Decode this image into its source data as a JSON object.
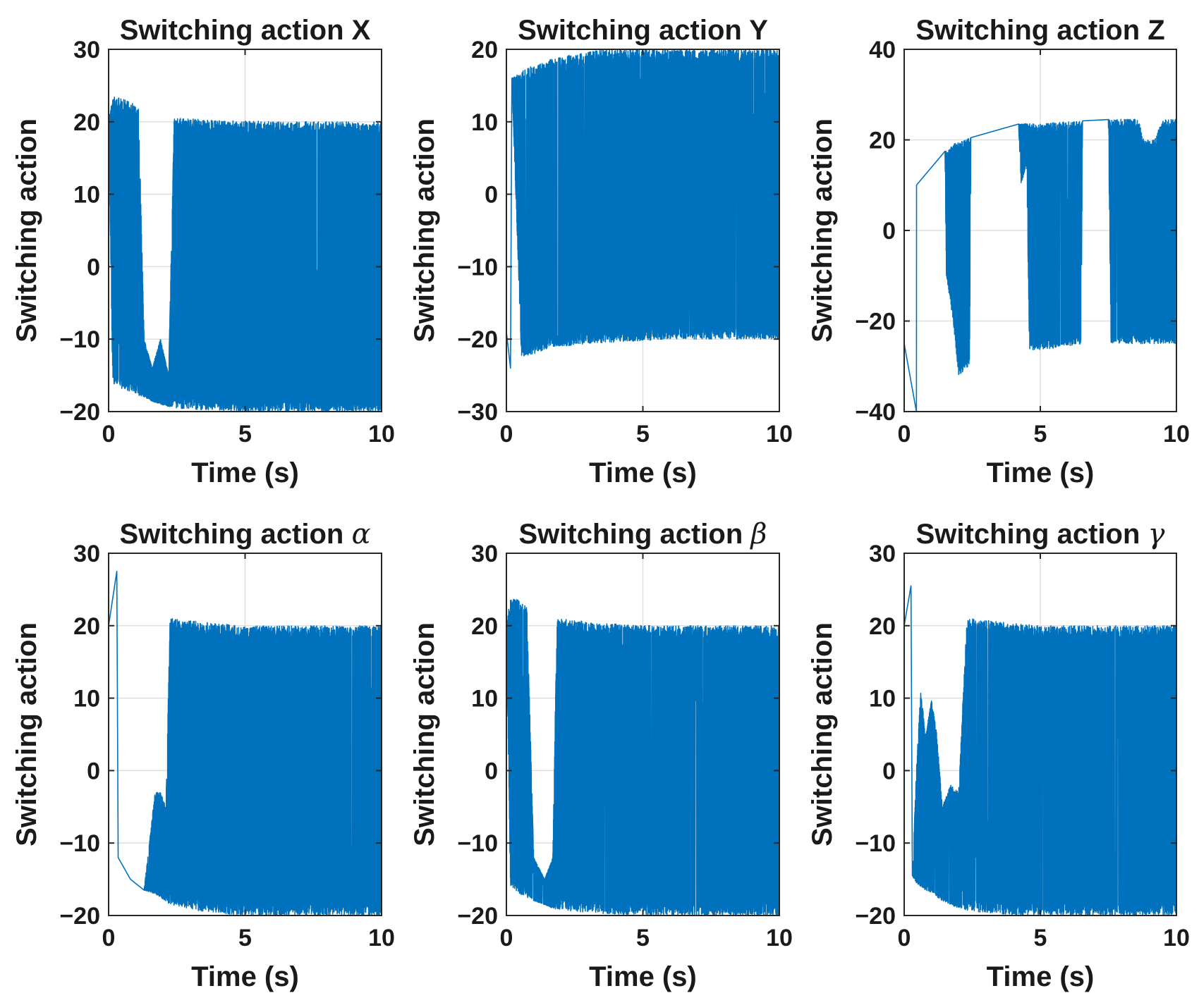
{
  "colors": {
    "series": "#0072BD",
    "axis": "#262626",
    "grid": "#dfdfdf",
    "background": "#ffffff"
  },
  "chart_data": [
    {
      "type": "line",
      "title": "Switching action X",
      "xlabel": "Time (s)",
      "ylabel": "Switching action",
      "xlim": [
        0,
        10
      ],
      "ylim": [
        -20,
        30
      ],
      "xticks": [
        0,
        5,
        10
      ],
      "yticks": [
        -20,
        -10,
        0,
        10,
        20,
        30
      ],
      "xtick_labels": [
        "0",
        "5",
        "10"
      ],
      "ytick_labels": [
        "−20",
        "−10",
        "0",
        "10",
        "20",
        "30"
      ],
      "grid": true,
      "series": [
        {
          "envelope": [
            [
              0,
              20,
              20
            ],
            [
              0.15,
              23.5,
              -16
            ],
            [
              0.3,
              23.5,
              -16.5
            ],
            [
              0.6,
              23,
              -17
            ],
            [
              0.9,
              22.5,
              -17.5
            ],
            [
              1.1,
              22,
              -17.8
            ],
            [
              1.3,
              -10,
              -18
            ],
            [
              1.6,
              -14,
              -18.6
            ],
            [
              1.9,
              -10,
              -19
            ],
            [
              2.2,
              -15,
              -19.3
            ],
            [
              2.4,
              20.5,
              -19.5
            ],
            [
              3.0,
              20.4,
              -19.7
            ],
            [
              3.6,
              20.3,
              -19.8
            ],
            [
              4.2,
              20.2,
              -19.9
            ],
            [
              4.8,
              20.1,
              -20
            ],
            [
              5.2,
              20.1,
              -20
            ],
            [
              5.6,
              20.1,
              -20
            ],
            [
              6.0,
              20,
              -20
            ],
            [
              6.5,
              20,
              -20
            ],
            [
              7.0,
              20,
              -20
            ],
            [
              7.5,
              20,
              -20
            ],
            [
              8.0,
              20,
              -20
            ],
            [
              8.5,
              20,
              -20
            ],
            [
              9.0,
              20,
              -20
            ],
            [
              9.5,
              20,
              -20
            ],
            [
              10,
              20,
              -20
            ]
          ]
        }
      ]
    },
    {
      "type": "line",
      "title": "Switching action Y",
      "xlabel": "Time (s)",
      "ylabel": "Switching action",
      "xlim": [
        0,
        10
      ],
      "ylim": [
        -30,
        20
      ],
      "xticks": [
        0,
        5,
        10
      ],
      "yticks": [
        -30,
        -20,
        -10,
        0,
        10,
        20
      ],
      "xtick_labels": [
        "0",
        "5",
        "10"
      ],
      "ytick_labels": [
        "−30",
        "−20",
        "−10",
        "0",
        "10",
        "20"
      ],
      "grid": true,
      "series": [
        {
          "envelope": [
            [
              0,
              -19,
              -19
            ],
            [
              0.15,
              -24,
              -24
            ],
            [
              0.2,
              16,
              16
            ],
            [
              0.55,
              17,
              -22.5
            ],
            [
              1.0,
              17.8,
              -22
            ],
            [
              1.5,
              18.5,
              -21.3
            ],
            [
              2.0,
              19,
              -21
            ],
            [
              2.5,
              19.3,
              -20.8
            ],
            [
              3.0,
              19.6,
              -20.6
            ],
            [
              3.5,
              20,
              -20.5
            ],
            [
              4.0,
              20,
              -20.4
            ],
            [
              4.5,
              20,
              -20.3
            ],
            [
              5.0,
              20,
              -20.2
            ],
            [
              5.5,
              20,
              -20.1
            ],
            [
              6.0,
              20,
              -20
            ],
            [
              6.5,
              20,
              -20
            ],
            [
              7.0,
              20,
              -20
            ],
            [
              7.5,
              20,
              -20
            ],
            [
              8.0,
              20,
              -20
            ],
            [
              8.5,
              20,
              -20
            ],
            [
              9.0,
              20,
              -20
            ],
            [
              9.5,
              20,
              -20
            ],
            [
              10,
              20,
              -20
            ]
          ]
        }
      ]
    },
    {
      "type": "line",
      "title": "Switching action Z",
      "xlabel": "Time (s)",
      "ylabel": "Switching action",
      "xlim": [
        0,
        10
      ],
      "ylim": [
        -40,
        40
      ],
      "xticks": [
        0,
        5,
        10
      ],
      "yticks": [
        -40,
        -20,
        0,
        20,
        40
      ],
      "xtick_labels": [
        "0",
        "5",
        "10"
      ],
      "ytick_labels": [
        "−40",
        "−20",
        "0",
        "20",
        "40"
      ],
      "grid": true,
      "series": [
        {
          "envelope": [
            [
              0,
              -25,
              -25
            ],
            [
              0.45,
              -40,
              -40
            ],
            [
              0.45,
              10,
              10
            ],
            [
              1.5,
              17.5,
              17.5
            ],
            [
              1.55,
              17.5,
              -10
            ],
            [
              1.8,
              19,
              -20
            ],
            [
              2.0,
              19.8,
              -32
            ],
            [
              2.4,
              20.5,
              -30
            ],
            [
              2.45,
              20.5,
              20.5
            ],
            [
              4.2,
              23.5,
              23.5
            ],
            [
              4.3,
              23.5,
              10
            ],
            [
              4.5,
              23.6,
              15
            ],
            [
              4.6,
              23.6,
              -26.5
            ],
            [
              5.5,
              23.8,
              -26
            ],
            [
              5.9,
              24,
              -25.5
            ],
            [
              6.5,
              24.2,
              -25.2
            ],
            [
              6.55,
              24.2,
              24.2
            ],
            [
              7.5,
              24.5,
              24.5
            ],
            [
              7.6,
              24.5,
              -24.8
            ],
            [
              8.3,
              24.6,
              -25
            ],
            [
              8.6,
              24.6,
              -25
            ],
            [
              8.8,
              20,
              -25
            ],
            [
              9.2,
              20,
              -25
            ],
            [
              9.5,
              24.6,
              -25
            ],
            [
              10,
              24.6,
              -25
            ]
          ]
        }
      ]
    },
    {
      "type": "line",
      "title": "Switching action α",
      "xlabel": "Time (s)",
      "ylabel": "Switching action",
      "xlim": [
        0,
        10
      ],
      "ylim": [
        -20,
        30
      ],
      "xticks": [
        0,
        5,
        10
      ],
      "yticks": [
        -20,
        -10,
        0,
        10,
        20,
        30
      ],
      "xtick_labels": [
        "0",
        "5",
        "10"
      ],
      "ytick_labels": [
        "−20",
        "−10",
        "0",
        "10",
        "20",
        "30"
      ],
      "grid": true,
      "series": [
        {
          "envelope": [
            [
              0,
              20,
              20
            ],
            [
              0.3,
              27.5,
              27.5
            ],
            [
              0.35,
              -12,
              -12
            ],
            [
              0.8,
              -15,
              -15
            ],
            [
              1.3,
              -16.5,
              -16.5
            ],
            [
              1.7,
              -3,
              -17
            ],
            [
              1.9,
              -3,
              -17.5
            ],
            [
              2.1,
              -5,
              -18
            ],
            [
              2.25,
              21,
              -18.5
            ],
            [
              2.8,
              20.8,
              -19
            ],
            [
              3.4,
              20.5,
              -19.4
            ],
            [
              4.0,
              20.3,
              -19.7
            ],
            [
              4.6,
              20.1,
              -19.9
            ],
            [
              5.2,
              20,
              -20
            ],
            [
              5.8,
              20,
              -20
            ],
            [
              6.4,
              20,
              -20
            ],
            [
              7.0,
              20,
              -20
            ],
            [
              7.6,
              20,
              -20
            ],
            [
              8.2,
              20,
              -20
            ],
            [
              8.8,
              20,
              -20
            ],
            [
              9.4,
              20,
              -20
            ],
            [
              10,
              20,
              -20
            ]
          ]
        }
      ]
    },
    {
      "type": "line",
      "title": "Switching action β",
      "xlabel": "Time (s)",
      "ylabel": "Switching action",
      "xlim": [
        0,
        10
      ],
      "ylim": [
        -20,
        30
      ],
      "xticks": [
        0,
        5,
        10
      ],
      "yticks": [
        -20,
        -10,
        0,
        10,
        20,
        30
      ],
      "xtick_labels": [
        "0",
        "5",
        "10"
      ],
      "ytick_labels": [
        "−20",
        "−10",
        "0",
        "10",
        "20",
        "30"
      ],
      "grid": true,
      "series": [
        {
          "envelope": [
            [
              0,
              20,
              20
            ],
            [
              0.15,
              24,
              -16
            ],
            [
              0.5,
              23.5,
              -17
            ],
            [
              0.75,
              22.5,
              -17.5
            ],
            [
              1.0,
              -12,
              -18
            ],
            [
              1.4,
              -15,
              -18.5
            ],
            [
              1.7,
              -12,
              -19
            ],
            [
              1.85,
              21,
              -19.2
            ],
            [
              2.4,
              20.8,
              -19.4
            ],
            [
              3.0,
              20.5,
              -19.6
            ],
            [
              3.6,
              20.3,
              -19.8
            ],
            [
              4.2,
              20.2,
              -19.9
            ],
            [
              4.8,
              20.1,
              -20
            ],
            [
              5.4,
              20,
              -20
            ],
            [
              6.0,
              20,
              -20
            ],
            [
              6.6,
              20,
              -20
            ],
            [
              7.2,
              20,
              -20
            ],
            [
              7.8,
              20,
              -20
            ],
            [
              8.4,
              20,
              -20
            ],
            [
              9.0,
              20,
              -20
            ],
            [
              9.6,
              20,
              -20
            ],
            [
              10,
              20,
              -20
            ]
          ]
        }
      ]
    },
    {
      "type": "line",
      "title": "Switching action γ",
      "xlabel": "Time (s)",
      "ylabel": "Switching action",
      "xlim": [
        0,
        10
      ],
      "ylim": [
        -20,
        30
      ],
      "xticks": [
        0,
        5,
        10
      ],
      "yticks": [
        -20,
        -10,
        0,
        10,
        20,
        30
      ],
      "xtick_labels": [
        "0",
        "5",
        "10"
      ],
      "ytick_labels": [
        "−20",
        "−10",
        "0",
        "10",
        "20",
        "30"
      ],
      "grid": true,
      "series": [
        {
          "envelope": [
            [
              0,
              20,
              20
            ],
            [
              0.25,
              25.5,
              25.5
            ],
            [
              0.3,
              -14.5,
              -14.5
            ],
            [
              0.45,
              0,
              -15.5
            ],
            [
              0.6,
              11,
              -16
            ],
            [
              0.8,
              5,
              -16.5
            ],
            [
              1.0,
              10,
              -17
            ],
            [
              1.2,
              5,
              -17.5
            ],
            [
              1.4,
              -5,
              -18
            ],
            [
              1.7,
              -2,
              -18.5
            ],
            [
              2.0,
              -3,
              -19
            ],
            [
              2.3,
              21,
              -19.3
            ],
            [
              2.9,
              20.8,
              -19.6
            ],
            [
              3.5,
              20.5,
              -19.8
            ],
            [
              4.1,
              20.3,
              -19.9
            ],
            [
              4.7,
              20.1,
              -20
            ],
            [
              5.3,
              20,
              -20
            ],
            [
              5.9,
              20,
              -20
            ],
            [
              6.5,
              20,
              -20
            ],
            [
              7.1,
              20,
              -20
            ],
            [
              7.7,
              20,
              -20
            ],
            [
              8.3,
              20,
              -20
            ],
            [
              8.9,
              20,
              -20
            ],
            [
              9.5,
              20,
              -20
            ],
            [
              10,
              20,
              -20
            ]
          ]
        }
      ]
    }
  ]
}
